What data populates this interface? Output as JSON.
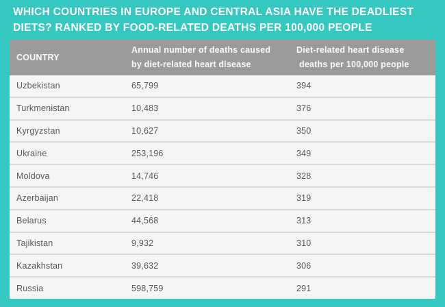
{
  "colors": {
    "background": "#35c8c1",
    "header_bg": "#9b9b9b",
    "header_text": "#fafafa",
    "row_bg": "#f5f5f5",
    "row_text": "#54585a",
    "divider": "#d8d8d8",
    "title_text": "#ffffff"
  },
  "title": {
    "lines": [
      "WHICH COUNTRIES IN EUROPE AND CENTRAL ASIA HAVE THE DEADLIEST",
      "DIETS? RANKED BY FOOD-RELATED DEATHS PER 100,000 PEOPLE"
    ]
  },
  "table": {
    "headers": {
      "country": {
        "lines": [
          "COUNTRY"
        ]
      },
      "annual": {
        "lines": [
          "Annual number of deaths caused",
          "by diet-related heart disease"
        ]
      },
      "rate": {
        "lines": [
          "Diet-related heart disease",
          "deaths per 100,000 people"
        ]
      }
    },
    "rows": [
      {
        "country": "Uzbekistan",
        "annual_deaths": "65,799",
        "per_100k": "394"
      },
      {
        "country": "Turkmenistan",
        "annual_deaths": "10,483",
        "per_100k": "376"
      },
      {
        "country": "Kyrgyzstan",
        "annual_deaths": "10,627",
        "per_100k": "350"
      },
      {
        "country": "Ukraine",
        "annual_deaths": "253,196",
        "per_100k": "349"
      },
      {
        "country": "Moldova",
        "annual_deaths": "14,746",
        "per_100k": "328"
      },
      {
        "country": "Azerbaijan",
        "annual_deaths": "22,418",
        "per_100k": "319"
      },
      {
        "country": "Belarus",
        "annual_deaths": "44,568",
        "per_100k": "313"
      },
      {
        "country": "Tajikistan",
        "annual_deaths": "9,932",
        "per_100k": "310"
      },
      {
        "country": "Kazakhstan",
        "annual_deaths": "39,632",
        "per_100k": "306"
      },
      {
        "country": "Russia",
        "annual_deaths": "598,759",
        "per_100k": "291"
      }
    ]
  },
  "chart_data": {
    "type": "table",
    "title": "WHICH COUNTRIES IN EUROPE AND CENTRAL ASIA HAVE THE DEADLIEST DIETS? RANKED BY FOOD-RELATED DEATHS PER 100,000 PEOPLE",
    "columns": [
      "COUNTRY",
      "Annual number of deaths caused by diet-related heart disease",
      "Diet-related heart disease deaths per 100,000 people"
    ],
    "categories": [
      "Uzbekistan",
      "Turkmenistan",
      "Kyrgyzstan",
      "Ukraine",
      "Moldova",
      "Azerbaijan",
      "Belarus",
      "Tajikistan",
      "Kazakhstan",
      "Russia"
    ],
    "series": [
      {
        "name": "Annual number of deaths caused by diet-related heart disease",
        "values": [
          65799,
          10483,
          10627,
          253196,
          14746,
          22418,
          44568,
          9932,
          39632,
          598759
        ]
      },
      {
        "name": "Diet-related heart disease deaths per 100,000 people",
        "values": [
          394,
          376,
          350,
          349,
          328,
          319,
          313,
          310,
          306,
          291
        ]
      }
    ],
    "layout": {
      "sorted_by": "deaths per 100,000 descending",
      "grid": "horizontal row dividers",
      "legend_position": "none"
    }
  }
}
